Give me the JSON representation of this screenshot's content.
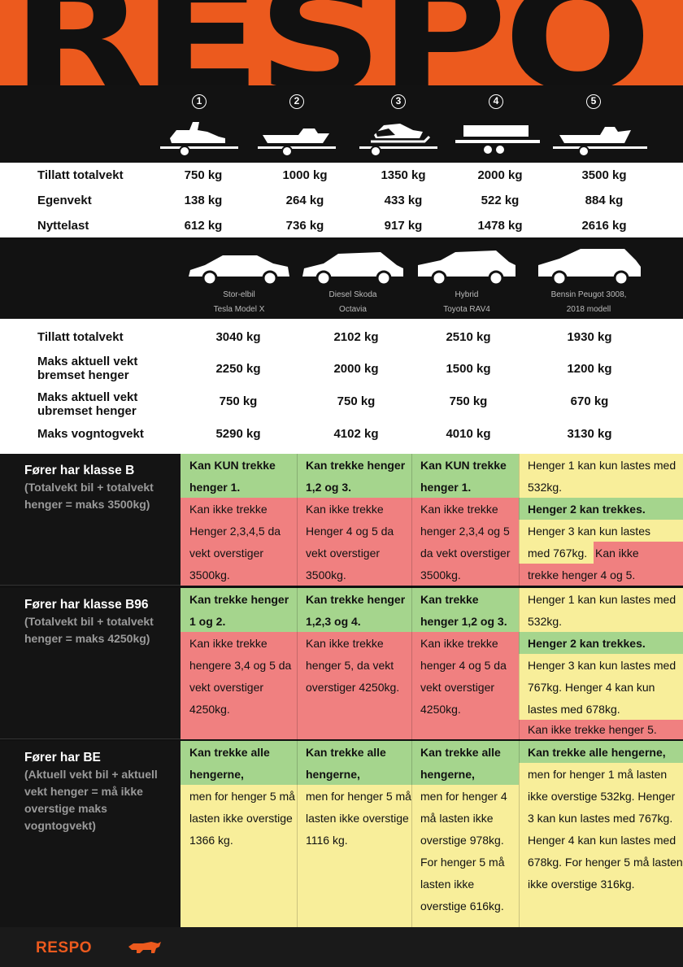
{
  "brand": {
    "logo_big": "RESPO",
    "logo_small": "RESPO",
    "accent": "#ec5a1e"
  },
  "trailers": [
    {
      "num": "1",
      "icon": "jetski-icon"
    },
    {
      "num": "2",
      "icon": "motorboat-icon"
    },
    {
      "num": "3",
      "icon": "snowmobile-icon"
    },
    {
      "num": "4",
      "icon": "cargo-trailer-icon"
    },
    {
      "num": "5",
      "icon": "boat-icon"
    }
  ],
  "trailer_specs": {
    "labels": [
      "Tillatt totalvekt",
      "Egenvekt",
      "Nyttelast"
    ],
    "rows": [
      [
        "750 kg",
        "1000 kg",
        "1350 kg",
        "2000 kg",
        "3500 kg"
      ],
      [
        "138 kg",
        "264 kg",
        "433 kg",
        "522 kg",
        "884 kg"
      ],
      [
        "612 kg",
        "736 kg",
        "917 kg",
        "1478 kg",
        "2616 kg"
      ]
    ]
  },
  "cars": [
    {
      "line1": "Stor-elbil",
      "line2": "Tesla Model X"
    },
    {
      "line1": "Diesel Skoda",
      "line2": "Octavia"
    },
    {
      "line1": "Hybrid",
      "line2": "Toyota RAV4"
    },
    {
      "line1": "Bensin Peugot 3008,",
      "line2": "2018 modell"
    }
  ],
  "car_specs": {
    "labels": [
      "Tillatt totalvekt",
      "Maks aktuell vekt\nbremset henger",
      "Maks aktuell vekt\nubremset henger",
      "Maks vogntogvekt"
    ],
    "rows": [
      [
        "3040 kg",
        "2102 kg",
        "2510 kg",
        "1930 kg"
      ],
      [
        "2250 kg",
        "2000 kg",
        "1500 kg",
        "1200 kg"
      ],
      [
        "750 kg",
        "750 kg",
        "750 kg",
        "670 kg"
      ],
      [
        "5290 kg",
        "4102 kg",
        "4010 kg",
        "3130 kg"
      ]
    ]
  },
  "classes": [
    {
      "title": "Fører har klasse B",
      "sub": "(Totalvekt bil + totalvekt henger = maks 3500kg)",
      "c1g": "Kan KUN trekke henger 1.",
      "c1r": "Kan ikke trekke Henger 2,3,4,5 da vekt overstiger 3500kg.",
      "c2g": "Kan trekke henger 1,2 og 3.",
      "c2r": "Kan ikke trekke Henger 4 og 5 da vekt overstiger 3500kg.",
      "c3g": "Kan KUN trekke henger 1.",
      "c3r": "Kan ikke trekke henger 2,3,4 og 5 da vekt overstiger 3500kg.",
      "c4a": "Henger 1 kan kun lastes med 532kg.",
      "c4b": "Henger 2 kan trekkes.",
      "c4c": "Henger 3 kan kun lastes",
      "c4d": "med 767kg.",
      "c4e": "Kan ikke",
      "c4f": "trekke henger 4 og 5."
    },
    {
      "title": "Fører har klasse B96",
      "sub": "(Totalvekt bil + totalvekt henger = maks 4250kg)",
      "c1g": "Kan trekke henger 1 og 2.",
      "c1r": "Kan ikke trekke hengere 3,4 og 5 da vekt overstiger 4250kg.",
      "c2g": "Kan trekke henger 1,2,3 og 4.",
      "c2r": "Kan ikke trekke henger 5, da vekt overstiger 4250kg.",
      "c3g": "Kan trekke henger 1,2 og 3.",
      "c3r": "Kan ikke trekke henger 4 og 5 da vekt overstiger 4250kg.",
      "c4a": "Henger 1 kan kun lastes med 532kg.",
      "c4b": "Henger 2 kan trekkes.",
      "c4c": "Henger 3 kan kun lastes med 767kg. Henger 4 kan kun lastes med 678kg.",
      "c4d": "Kan ikke trekke henger 5."
    },
    {
      "title": "Fører har BE",
      "sub": "(Aktuell vekt bil + aktuell vekt henger = må ikke overstige maks vogntogvekt)",
      "c1g": "Kan trekke alle hengerne,",
      "c1y": "men for henger 5 må lasten ikke overstige 1366 kg.",
      "c2g": "Kan trekke alle hengerne,",
      "c2y": "men for henger 5 må lasten ikke overstige 1116 kg.",
      "c3g": "Kan trekke alle hengerne,",
      "c3y": "men for henger 4 må lasten ikke overstige 978kg. For henger 5 må lasten ikke overstige 616kg.",
      "c4g": "Kan trekke alle hengerne,",
      "c4y": "men for henger 1 må lasten ikke overstige 532kg. Henger 3 kan kun lastes med 767kg. Henger 4 kan kun lastes med 678kg. For henger 5 må lasten ikke overstige 316kg."
    }
  ]
}
